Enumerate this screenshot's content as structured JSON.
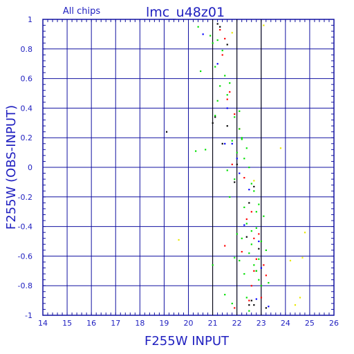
{
  "chart_data": {
    "type": "scatter",
    "title": "lmc_u48z01",
    "subtitle": "All chips",
    "xlabel": "F255W INPUT",
    "ylabel": "F255W (OBS-INPUT)",
    "xlim": [
      14,
      26
    ],
    "ylim": [
      -1,
      1
    ],
    "x_ticks": [
      "14",
      "15",
      "16",
      "17",
      "18",
      "19",
      "20",
      "21",
      "22",
      "23",
      "24",
      "25",
      "26"
    ],
    "y_ticks": [
      "-1",
      "-0.8",
      "-0.6",
      "-0.4",
      "-0.2",
      "0",
      "0.2",
      "0.4",
      "0.6",
      "0.8",
      "1"
    ],
    "grid": true,
    "reference_lines_x": [
      21,
      22,
      23
    ],
    "colors": {
      "grid": "#1010a0",
      "text": "#2020c0",
      "reference": "#000000",
      "black": "#000000",
      "blue": "#0000ff",
      "red": "#ff0000",
      "green": "#00e000",
      "yellow": "#e8e800"
    },
    "series": [
      {
        "color": "black",
        "x": [
          19.1,
          21.2,
          21.3,
          21.1,
          21.6,
          21.0,
          21.4,
          22.0,
          21.9,
          22.5,
          22.7,
          22.9,
          22.4,
          22.8,
          22.6,
          22.5,
          22.7,
          23.2,
          21.6
        ],
        "y": [
          0.24,
          0.97,
          0.95,
          0.34,
          0.28,
          0.3,
          0.16,
          0.02,
          -0.1,
          -0.24,
          -0.13,
          -0.55,
          -0.47,
          -0.7,
          -0.9,
          -0.93,
          -0.93,
          -0.95,
          0.83
        ]
      },
      {
        "color": "blue",
        "x": [
          20.6,
          21.2,
          21.6,
          21.8,
          22.0,
          22.1,
          22.5,
          22.3,
          22.9,
          23.0,
          22.8,
          23.3,
          21.5
        ],
        "y": [
          0.9,
          0.7,
          0.4,
          0.16,
          0.06,
          -0.04,
          -0.15,
          -0.39,
          -0.5,
          -0.68,
          -0.89,
          -0.94,
          0.16
        ]
      },
      {
        "color": "red",
        "x": [
          21.3,
          21.5,
          21.4,
          21.7,
          21.6,
          21.9,
          22.1,
          21.8,
          22.3,
          22.6,
          22.4,
          22.9,
          22.7,
          22.8,
          23.1,
          23.2,
          22.6,
          23.0,
          22.5,
          21.9,
          21.5,
          22.2,
          22.7
        ],
        "y": [
          0.93,
          0.87,
          0.76,
          0.51,
          0.46,
          0.36,
          0.26,
          0.02,
          -0.07,
          -0.3,
          -0.35,
          -0.45,
          -0.48,
          -0.62,
          -0.66,
          -0.73,
          -0.8,
          -0.88,
          -0.9,
          -0.95,
          -0.53,
          -0.57,
          -0.7
        ]
      },
      {
        "color": "green",
        "x": [
          20.4,
          20.9,
          21.2,
          21.0,
          21.4,
          21.1,
          21.5,
          21.7,
          21.3,
          21.6,
          21.2,
          21.9,
          22.1,
          22.2,
          21.8,
          22.4,
          22.0,
          22.3,
          22.5,
          21.6,
          21.9,
          22.6,
          22.7,
          21.7,
          22.9,
          22.3,
          23.1,
          22.4,
          22.8,
          22.6,
          23.0,
          23.2,
          22.5,
          21.9,
          22.1,
          22.7,
          22.3,
          22.9,
          23.3,
          21.5,
          20.7,
          20.3,
          22.0,
          22.2,
          22.6,
          22.8,
          23.0,
          22.4,
          21.8,
          22.5,
          22.2,
          22.9,
          20.5,
          21.0,
          21.1,
          22.1,
          22.8
        ],
        "y": [
          0.95,
          0.89,
          0.86,
          0.84,
          0.79,
          0.68,
          0.62,
          0.57,
          0.55,
          0.49,
          0.45,
          0.34,
          0.26,
          0.2,
          0.18,
          0.13,
          0.1,
          0.06,
          0.0,
          -0.02,
          -0.08,
          -0.11,
          -0.16,
          -0.2,
          -0.25,
          -0.27,
          -0.33,
          -0.38,
          -0.41,
          -0.43,
          -0.5,
          -0.56,
          -0.58,
          -0.61,
          -0.63,
          -0.66,
          -0.72,
          -0.76,
          -0.78,
          -0.86,
          0.12,
          0.11,
          -0.45,
          -0.48,
          -0.52,
          -0.7,
          -0.8,
          -0.88,
          -0.92,
          -0.97,
          0.19,
          -0.62,
          0.65,
          -0.66,
          0.35,
          0.38,
          -0.3
        ]
      },
      {
        "color": "yellow",
        "x": [
          23.1,
          23.8,
          24.8,
          24.7,
          24.2,
          24.4,
          24.6,
          21.8,
          19.6,
          22.7
        ],
        "y": [
          0.96,
          0.13,
          -0.44,
          -0.61,
          -0.63,
          -0.93,
          -0.88,
          0.91,
          -0.49,
          -0.09
        ]
      }
    ]
  }
}
